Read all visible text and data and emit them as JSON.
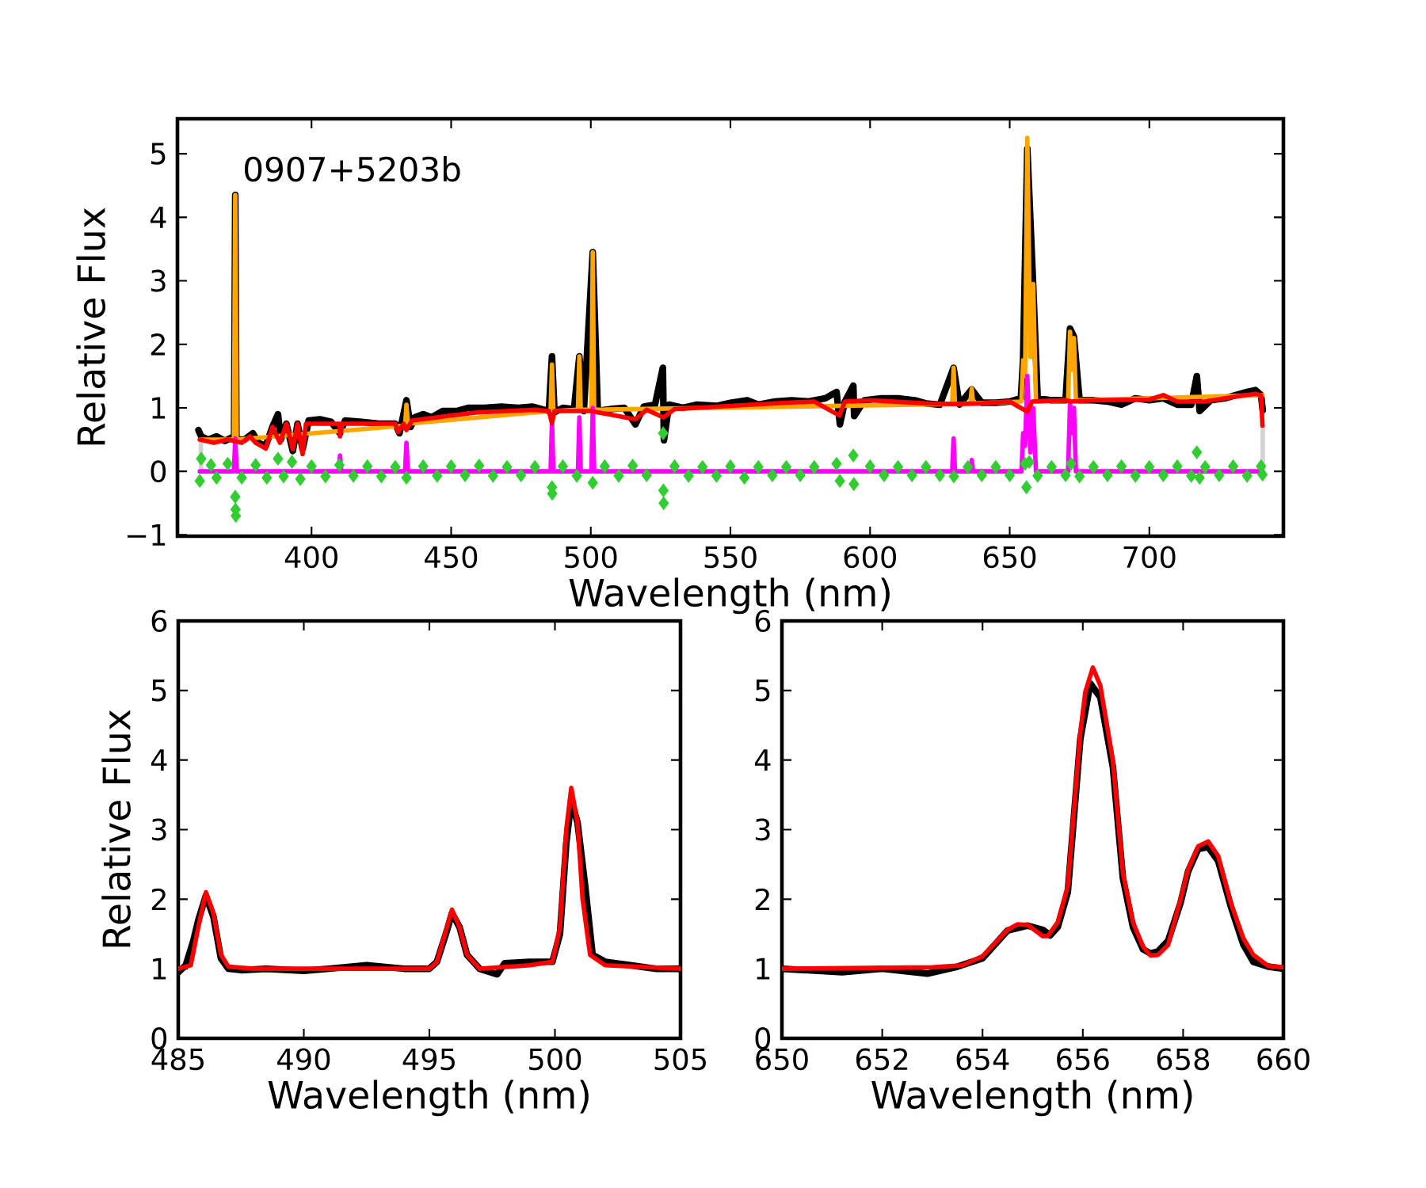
{
  "chart_data": [
    {
      "type": "line",
      "xlabel": "Wavelength (nm)",
      "ylabel": "Relative Flux",
      "annotations": [
        "0907+5203b"
      ],
      "xlim": [
        352,
        748
      ],
      "ylim": [
        -1.02,
        5.55
      ],
      "xticks": [
        400,
        450,
        500,
        550,
        600,
        650,
        700
      ],
      "yticks": [
        {
          "value": -1,
          "label": "−1"
        },
        0,
        1,
        2,
        3,
        4,
        5
      ],
      "series": [
        {
          "type": "line",
          "color": "#000000",
          "x": [
            359.5,
            360.5,
            363,
            366,
            369,
            372.3,
            372.7,
            373.1,
            376,
            379,
            381,
            383.6,
            386,
            388,
            389,
            391,
            393.3,
            395,
            396.8,
            399,
            403,
            407,
            410.2,
            412,
            418,
            424,
            430,
            431.5,
            434,
            435.5,
            437,
            440,
            443,
            447,
            452,
            456,
            462,
            468,
            474,
            479,
            485,
            486.1,
            487,
            490,
            494,
            495.9,
            497.5,
            500.7,
            502.5,
            507,
            512,
            516,
            519,
            523,
            525.8,
            526.2,
            528,
            533,
            538,
            545,
            550,
            556,
            560,
            566,
            572,
            578,
            584,
            588,
            589.2,
            591,
            594,
            594.3,
            598,
            604,
            610,
            616,
            620,
            625,
            629.9,
            632,
            636.4,
            640,
            645,
            650,
            654,
            654.8,
            656.3,
            658.4,
            660,
            665,
            670,
            671.6,
            673,
            675,
            680,
            685,
            690,
            695,
            700,
            705,
            710,
            715,
            717,
            718,
            722,
            727,
            731,
            735,
            738,
            740,
            740.6
          ],
          "values": [
            0.65,
            0.55,
            0.5,
            0.55,
            0.48,
            0.55,
            4.35,
            0.5,
            0.5,
            0.6,
            0.45,
            0.4,
            0.7,
            0.9,
            0.5,
            0.75,
            0.32,
            0.75,
            0.35,
            0.8,
            0.82,
            0.78,
            0.6,
            0.8,
            0.78,
            0.75,
            0.75,
            0.6,
            1.12,
            0.7,
            0.85,
            0.9,
            0.85,
            0.95,
            0.95,
            1.0,
            1.0,
            1.02,
            1.0,
            1.02,
            0.95,
            1.81,
            0.93,
            1.0,
            0.98,
            1.81,
            0.95,
            3.45,
            0.95,
            0.98,
            1.0,
            0.74,
            1.02,
            1.05,
            1.63,
            0.49,
            1.05,
            1.0,
            1.05,
            1.03,
            1.08,
            1.12,
            1.05,
            1.1,
            1.12,
            1.1,
            1.15,
            1.25,
            0.74,
            1.1,
            1.35,
            0.87,
            1.12,
            1.15,
            1.15,
            1.12,
            1.07,
            1.05,
            1.63,
            1.05,
            1.29,
            1.08,
            1.08,
            1.1,
            1.15,
            1.76,
            5.08,
            2.92,
            1.15,
            1.12,
            1.12,
            2.25,
            2.12,
            1.12,
            1.12,
            1.1,
            1.05,
            1.15,
            1.12,
            1.15,
            1.05,
            1.05,
            1.5,
            0.95,
            1.12,
            1.15,
            1.2,
            1.25,
            1.28,
            1.2,
            0.96
          ]
        },
        {
          "type": "line",
          "color": "#ffa500",
          "x": [
            360,
            372.2,
            372.7,
            373.2,
            433.5,
            434,
            434.5,
            485.6,
            486.1,
            486.6,
            495.4,
            495.9,
            496.4,
            500.2,
            500.7,
            501.2,
            629.4,
            629.9,
            630.4,
            635.9,
            636.4,
            636.9,
            654.2,
            654.8,
            655.5,
            656.3,
            657.4,
            658.4,
            659.4,
            670.9,
            671.6,
            672.3,
            673,
            673.7,
            740.5
          ],
          "values": [
            0.5,
            0.5,
            4.35,
            0.5,
            0.72,
            1.05,
            0.75,
            0.95,
            1.68,
            0.95,
            0.97,
            1.81,
            0.97,
            0.97,
            3.45,
            0.97,
            1.06,
            1.63,
            1.06,
            1.07,
            1.3,
            1.07,
            1.1,
            1.75,
            1.5,
            5.25,
            1.8,
            2.95,
            1.1,
            1.12,
            2.2,
            1.6,
            2.1,
            1.12,
            1.2
          ]
        },
        {
          "type": "scatter",
          "marker": "diamond",
          "color": "#32cd32",
          "x": [
            360,
            360.5,
            364,
            366,
            370,
            372.7,
            372.8,
            372.9,
            375,
            380,
            384,
            388,
            390,
            393,
            396,
            400,
            405,
            410,
            415,
            420,
            425,
            430,
            434,
            440,
            445,
            450,
            455,
            460,
            465,
            470,
            475,
            480,
            486.1,
            486.2,
            490,
            495,
            500.7,
            505,
            510,
            515,
            520,
            525.9,
            526,
            526.1,
            530,
            535,
            540,
            545,
            550,
            555,
            560,
            565,
            570,
            575,
            580,
            588,
            589.2,
            594,
            594.2,
            600,
            605,
            610,
            615,
            620,
            625,
            630,
            635,
            640,
            645,
            650,
            655.5,
            656,
            657,
            660,
            665,
            670,
            672,
            675,
            680,
            685,
            690,
            695,
            700,
            705,
            710,
            715,
            717,
            718,
            720,
            725,
            730,
            735,
            740,
            740.5
          ],
          "values": [
            -0.15,
            0.2,
            0.1,
            -0.1,
            0.12,
            -0.4,
            -0.6,
            -0.7,
            -0.1,
            0.1,
            -0.1,
            0.2,
            -0.08,
            0.15,
            -0.12,
            0.08,
            -0.08,
            0.1,
            -0.07,
            0.08,
            -0.08,
            0.07,
            -0.1,
            0.08,
            -0.07,
            0.08,
            -0.06,
            0.09,
            -0.07,
            0.07,
            -0.06,
            0.07,
            -0.25,
            -0.35,
            0.08,
            -0.07,
            -0.18,
            0.08,
            -0.07,
            0.09,
            -0.06,
            0.6,
            -0.3,
            -0.5,
            0.08,
            -0.07,
            0.07,
            -0.07,
            0.08,
            -0.1,
            0.07,
            -0.06,
            0.07,
            -0.06,
            0.07,
            0.12,
            -0.15,
            0.25,
            -0.2,
            0.08,
            -0.06,
            0.07,
            -0.06,
            0.07,
            -0.06,
            -0.08,
            0.07,
            -0.06,
            0.07,
            -0.06,
            0.12,
            -0.25,
            0.15,
            -0.07,
            0.07,
            -0.06,
            0.12,
            -0.08,
            0.07,
            -0.06,
            0.08,
            -0.07,
            0.07,
            -0.06,
            0.08,
            -0.07,
            0.3,
            -0.1,
            0.07,
            -0.06,
            0.08,
            -0.07,
            0.08,
            -0.05
          ]
        },
        {
          "type": "line",
          "color": "#d3d3d3",
          "x": [
            360.4,
            360.4,
            550,
            740.6,
            740.6
          ],
          "values": [
            0.45,
            0,
            null,
            0,
            0.7
          ]
        },
        {
          "type": "line",
          "color": "#ff00ff",
          "x": [
            360,
            372.2,
            372.7,
            373.2,
            409.7,
            410.2,
            410.7,
            433.5,
            434,
            434.5,
            485.6,
            486.1,
            486.6,
            495.4,
            495.9,
            496.4,
            500.2,
            500.7,
            501.2,
            629.4,
            629.9,
            630.4,
            635.9,
            636.4,
            636.9,
            654.2,
            654.8,
            655.5,
            656.3,
            657.4,
            658.4,
            659.4,
            670.9,
            671.6,
            672.3,
            673,
            673.7,
            740.5
          ],
          "values": [
            0,
            0,
            0.52,
            0,
            0,
            0.25,
            0,
            0,
            0.45,
            0,
            0,
            0.8,
            0,
            0,
            0.85,
            0,
            0,
            1.0,
            0,
            0,
            0.52,
            0,
            0,
            0.18,
            0,
            0,
            0.6,
            0.4,
            1.5,
            0.3,
            1.0,
            0,
            0,
            1.1,
            0.6,
            1.0,
            0,
            0
          ]
        },
        {
          "type": "line",
          "color": "#ff0000",
          "x": [
            360,
            365,
            370,
            375,
            378,
            380,
            383.6,
            386,
            388.7,
            391,
            393.3,
            395,
            396.8,
            398,
            400,
            410,
            410.2,
            411,
            420,
            430,
            431,
            433,
            434,
            436,
            445,
            450,
            460,
            470,
            480,
            485,
            486.1,
            487,
            500,
            516,
            520,
            526,
            530,
            550,
            570,
            580,
            589,
            591,
            600,
            620,
            630,
            640,
            650,
            656.3,
            658,
            670,
            672,
            680,
            700,
            705,
            710,
            720,
            730,
            738,
            740,
            740.5
          ],
          "values": [
            0.5,
            0.45,
            0.5,
            0.45,
            0.55,
            0.45,
            0.36,
            0.7,
            0.45,
            0.75,
            0.35,
            0.75,
            0.27,
            0.75,
            0.75,
            0.75,
            0.55,
            0.75,
            0.75,
            0.75,
            0.62,
            0.75,
            0.65,
            0.8,
            0.85,
            0.88,
            0.93,
            0.95,
            0.97,
            0.95,
            0.76,
            0.95,
            0.95,
            0.82,
            0.97,
            0.85,
            0.98,
            1.03,
            1.08,
            1.1,
            0.88,
            1.1,
            1.12,
            1.07,
            1.06,
            1.07,
            1.1,
            0.94,
            1.1,
            1.12,
            1.1,
            1.12,
            1.13,
            1.2,
            1.1,
            1.1,
            1.17,
            1.22,
            1.2,
            0.72
          ]
        }
      ]
    },
    {
      "type": "line",
      "xlabel": "Wavelength (nm)",
      "ylabel": "Relative Flux",
      "xlim": [
        485,
        505
      ],
      "ylim": [
        0,
        6
      ],
      "xticks": [
        485,
        490,
        495,
        500,
        505
      ],
      "yticks": [
        0,
        1,
        2,
        3,
        4,
        5,
        6
      ],
      "series": [
        {
          "color": "#000000",
          "x": [
            485,
            485.3,
            485.6,
            485.8,
            486.1,
            486.4,
            486.7,
            487,
            487.5,
            488.5,
            490,
            491,
            492.5,
            494,
            495,
            495.3,
            495.7,
            495.9,
            496.2,
            496.5,
            497,
            497.7,
            498,
            499,
            499.9,
            500.2,
            500.45,
            500.65,
            500.9,
            501.2,
            501.5,
            502,
            503,
            504,
            505
          ],
          "values": [
            0.95,
            1.05,
            1.4,
            1.7,
            2.05,
            1.75,
            1.15,
            1.0,
            0.98,
            1.0,
            0.97,
            1.0,
            1.05,
            1.0,
            1.0,
            1.1,
            1.55,
            1.8,
            1.6,
            1.2,
            1.0,
            0.92,
            1.08,
            1.1,
            1.1,
            1.5,
            2.8,
            3.42,
            3.1,
            2.2,
            1.2,
            1.1,
            1.05,
            1.0,
            1.0
          ]
        },
        {
          "color": "#ff0000",
          "x": [
            485,
            485.5,
            485.8,
            486.1,
            486.4,
            486.7,
            487,
            488,
            495,
            495.3,
            495.7,
            495.9,
            496.2,
            496.5,
            497,
            499,
            499.9,
            500.2,
            500.45,
            500.65,
            500.9,
            501.1,
            501.4,
            502,
            505
          ],
          "values": [
            1.0,
            1.05,
            1.6,
            2.1,
            1.8,
            1.2,
            1.03,
            1.0,
            1.0,
            1.1,
            1.6,
            1.85,
            1.6,
            1.2,
            1.0,
            1.05,
            1.1,
            1.6,
            3.0,
            3.6,
            3.1,
            2.0,
            1.2,
            1.05,
            1.0
          ]
        }
      ]
    },
    {
      "type": "line",
      "xlabel": "Wavelength (nm)",
      "xlim": [
        650,
        660
      ],
      "ylim": [
        0,
        6
      ],
      "xticks": [
        650,
        652,
        654,
        656,
        658,
        660
      ],
      "yticks": [
        0,
        1,
        2,
        3,
        4,
        5,
        6
      ],
      "series": [
        {
          "color": "#000000",
          "x": [
            650,
            651.2,
            652,
            652.9,
            653.5,
            654,
            654.5,
            654.9,
            655.2,
            655.35,
            655.5,
            655.7,
            655.95,
            656.15,
            656.35,
            656.6,
            656.8,
            657,
            657.2,
            657.35,
            657.5,
            657.7,
            657.95,
            658.1,
            658.3,
            658.5,
            658.7,
            658.95,
            659.2,
            659.4,
            659.7,
            660
          ],
          "values": [
            1.0,
            0.95,
            1.0,
            0.93,
            1.03,
            1.15,
            1.55,
            1.62,
            1.56,
            1.48,
            1.6,
            2.1,
            4.3,
            5.1,
            4.9,
            3.9,
            2.3,
            1.6,
            1.28,
            1.22,
            1.25,
            1.4,
            1.95,
            2.4,
            2.72,
            2.75,
            2.55,
            1.9,
            1.35,
            1.1,
            1.03,
            1.0
          ]
        },
        {
          "color": "#ff0000",
          "x": [
            650,
            653,
            653.6,
            654,
            654.5,
            654.7,
            654.9,
            655.2,
            655.3,
            655.5,
            655.7,
            655.95,
            656.05,
            656.2,
            656.35,
            656.6,
            656.8,
            657,
            657.2,
            657.35,
            657.5,
            657.7,
            657.95,
            658.1,
            658.3,
            658.5,
            658.7,
            658.95,
            659.2,
            659.4,
            659.7,
            660
          ],
          "values": [
            1.0,
            1.02,
            1.05,
            1.18,
            1.56,
            1.64,
            1.63,
            1.47,
            1.47,
            1.67,
            2.19,
            4.4,
            4.98,
            5.33,
            5.07,
            3.99,
            2.38,
            1.67,
            1.32,
            1.19,
            1.2,
            1.34,
            2.0,
            2.43,
            2.76,
            2.83,
            2.62,
            1.95,
            1.44,
            1.2,
            1.04,
            1.02
          ]
        }
      ]
    }
  ]
}
